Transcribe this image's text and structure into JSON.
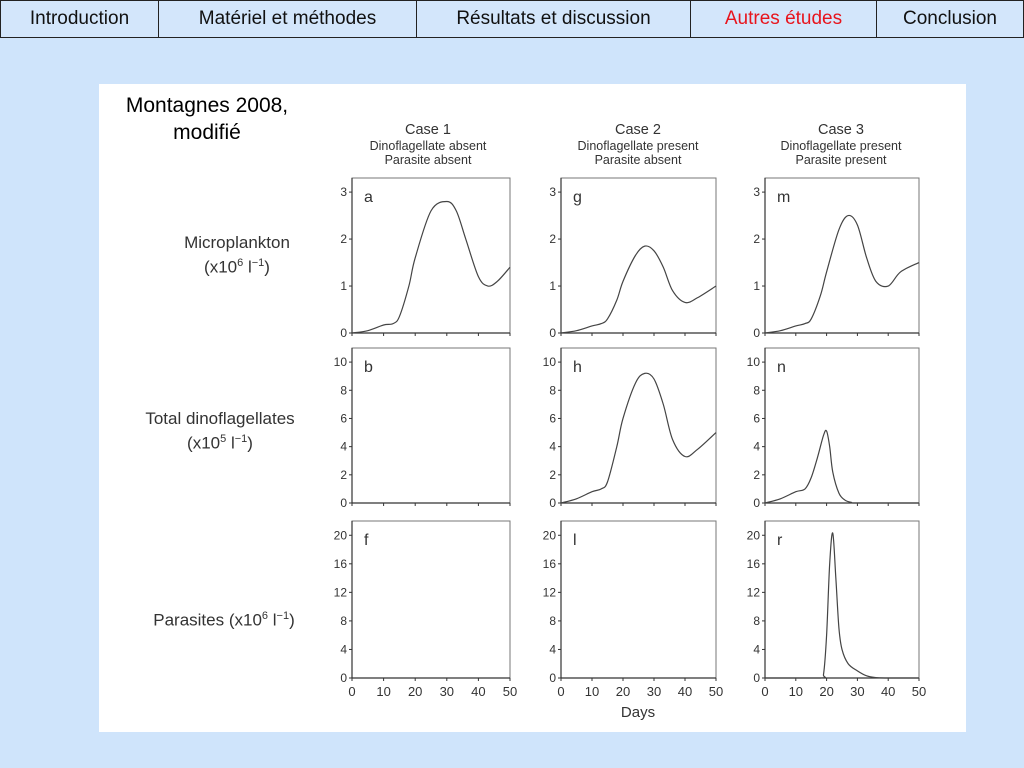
{
  "nav": {
    "tabs": [
      {
        "label": "Introduction",
        "active": false
      },
      {
        "label": "Matériel et méthodes",
        "active": false
      },
      {
        "label": "Résultats et discussion",
        "active": false
      },
      {
        "label": "Autres études",
        "active": true
      },
      {
        "label": "Conclusion",
        "active": false
      }
    ],
    "active_color": "#e8141c"
  },
  "figure": {
    "credit_line1": "Montagnes 2008,",
    "credit_line2": "modifié",
    "cases": [
      {
        "title": "Case 1",
        "line1": "Dinoflagellate absent",
        "line2": "Parasite absent"
      },
      {
        "title": "Case 2",
        "line1": "Dinoflagellate present",
        "line2": "Parasite absent"
      },
      {
        "title": "Case 3",
        "line1": "Dinoflagellate present",
        "line2": "Parasite present"
      }
    ],
    "rows": [
      {
        "label": "Microplankton",
        "unit_prefix": "(x10",
        "unit_exp": "6",
        "unit_mid": " l",
        "unit_exp2": "−1",
        "unit_suffix": ")"
      },
      {
        "label": "Total dinoflagellates",
        "unit_prefix": "(x10",
        "unit_exp": "5",
        "unit_mid": " l",
        "unit_exp2": "−1",
        "unit_suffix": ")"
      },
      {
        "label": "Parasites",
        "unit_prefix": " (x10",
        "unit_exp": "6",
        "unit_mid": " l",
        "unit_exp2": "−1",
        "unit_suffix": ")"
      }
    ],
    "xlabel": "Days"
  },
  "chart_data": [
    {
      "type": "line",
      "panel": "a",
      "title": "Case 1 – Microplankton",
      "xlabel": "Days",
      "ylabel": "Microplankton (x10^6 l^-1)",
      "xlim": [
        0,
        50
      ],
      "ylim": [
        0,
        3.3
      ],
      "yticks": [
        0,
        1,
        2,
        3
      ],
      "xticks": [
        0,
        10,
        20,
        30,
        40,
        50
      ],
      "x": [
        0,
        5,
        10,
        13,
        15,
        18,
        20,
        25,
        30,
        33,
        36,
        40,
        43,
        46,
        50
      ],
      "values": [
        0.0,
        0.05,
        0.17,
        0.2,
        0.35,
        1.0,
        1.6,
        2.6,
        2.8,
        2.6,
        2.0,
        1.2,
        1.0,
        1.1,
        1.4
      ]
    },
    {
      "type": "line",
      "panel": "g",
      "title": "Case 2 – Microplankton",
      "xlim": [
        0,
        50
      ],
      "ylim": [
        0,
        3.3
      ],
      "yticks": [
        0,
        1,
        2,
        3
      ],
      "xticks": [
        0,
        10,
        20,
        30,
        40,
        50
      ],
      "x": [
        0,
        5,
        10,
        13,
        15,
        18,
        20,
        24,
        27,
        30,
        33,
        36,
        40,
        44,
        50
      ],
      "values": [
        0.0,
        0.05,
        0.15,
        0.2,
        0.3,
        0.7,
        1.1,
        1.65,
        1.85,
        1.75,
        1.4,
        0.9,
        0.65,
        0.75,
        1.0
      ]
    },
    {
      "type": "line",
      "panel": "m",
      "title": "Case 3 – Microplankton",
      "xlim": [
        0,
        50
      ],
      "ylim": [
        0,
        3.3
      ],
      "yticks": [
        0,
        1,
        2,
        3
      ],
      "xticks": [
        0,
        10,
        20,
        30,
        40,
        50
      ],
      "x": [
        0,
        5,
        10,
        13,
        15,
        18,
        20,
        24,
        27,
        30,
        33,
        36,
        40,
        44,
        50
      ],
      "values": [
        0.0,
        0.05,
        0.15,
        0.2,
        0.3,
        0.8,
        1.3,
        2.2,
        2.5,
        2.3,
        1.6,
        1.1,
        1.0,
        1.3,
        1.5
      ]
    },
    {
      "type": "line",
      "panel": "b",
      "title": "Case 1 – Total dinoflagellates",
      "ylabel": "Total dinoflagellates (x10^5 l^-1)",
      "xlim": [
        0,
        50
      ],
      "ylim": [
        0,
        11
      ],
      "yticks": [
        0,
        2,
        4,
        6,
        8,
        10
      ],
      "xticks": [
        0,
        10,
        20,
        30,
        40,
        50
      ],
      "x": [],
      "values": []
    },
    {
      "type": "line",
      "panel": "h",
      "title": "Case 2 – Total dinoflagellates",
      "xlim": [
        0,
        50
      ],
      "ylim": [
        0,
        11
      ],
      "yticks": [
        0,
        2,
        4,
        6,
        8,
        10
      ],
      "xticks": [
        0,
        10,
        20,
        30,
        40,
        50
      ],
      "x": [
        0,
        5,
        10,
        13,
        15,
        18,
        20,
        24,
        27,
        30,
        33,
        36,
        40,
        44,
        50
      ],
      "values": [
        0.0,
        0.3,
        0.8,
        1.0,
        1.5,
        4.0,
        6.0,
        8.5,
        9.2,
        8.8,
        7.0,
        4.5,
        3.3,
        3.8,
        5.0
      ]
    },
    {
      "type": "line",
      "panel": "n",
      "title": "Case 3 – Total dinoflagellates",
      "xlim": [
        0,
        50
      ],
      "ylim": [
        0,
        11
      ],
      "yticks": [
        0,
        2,
        4,
        6,
        8,
        10
      ],
      "xticks": [
        0,
        10,
        20,
        30,
        40,
        50
      ],
      "x": [
        0,
        5,
        10,
        13,
        15,
        17,
        19,
        20,
        21,
        22,
        24,
        26,
        28,
        30,
        50
      ],
      "values": [
        0.0,
        0.3,
        0.8,
        1.0,
        1.8,
        3.2,
        4.8,
        5.1,
        4.0,
        2.2,
        0.7,
        0.2,
        0.05,
        0.0,
        0.0
      ]
    },
    {
      "type": "line",
      "panel": "f",
      "title": "Case 1 – Parasites",
      "ylabel": "Parasites (x10^6 l^-1)",
      "xlim": [
        0,
        50
      ],
      "ylim": [
        0,
        22
      ],
      "yticks": [
        0,
        4,
        8,
        12,
        16,
        20
      ],
      "xticks": [
        0,
        10,
        20,
        30,
        40,
        50
      ],
      "x": [],
      "values": []
    },
    {
      "type": "line",
      "panel": "l",
      "title": "Case 2 – Parasites",
      "xlim": [
        0,
        50
      ],
      "ylim": [
        0,
        22
      ],
      "yticks": [
        0,
        4,
        8,
        12,
        16,
        20
      ],
      "xticks": [
        0,
        10,
        20,
        30,
        40,
        50
      ],
      "x": [],
      "values": []
    },
    {
      "type": "line",
      "panel": "r",
      "title": "Case 3 – Parasites",
      "xlim": [
        0,
        50
      ],
      "ylim": [
        0,
        22
      ],
      "yticks": [
        0,
        4,
        8,
        12,
        16,
        20
      ],
      "xticks": [
        0,
        10,
        20,
        30,
        40,
        50
      ],
      "x": [
        0,
        18,
        19,
        20,
        21,
        22,
        23,
        24,
        25,
        27,
        30,
        33,
        36,
        40,
        50
      ],
      "values": [
        0,
        0,
        0.5,
        6,
        16,
        20.3,
        14,
        7,
        4,
        2,
        1,
        0.3,
        0.05,
        0,
        0
      ]
    }
  ]
}
